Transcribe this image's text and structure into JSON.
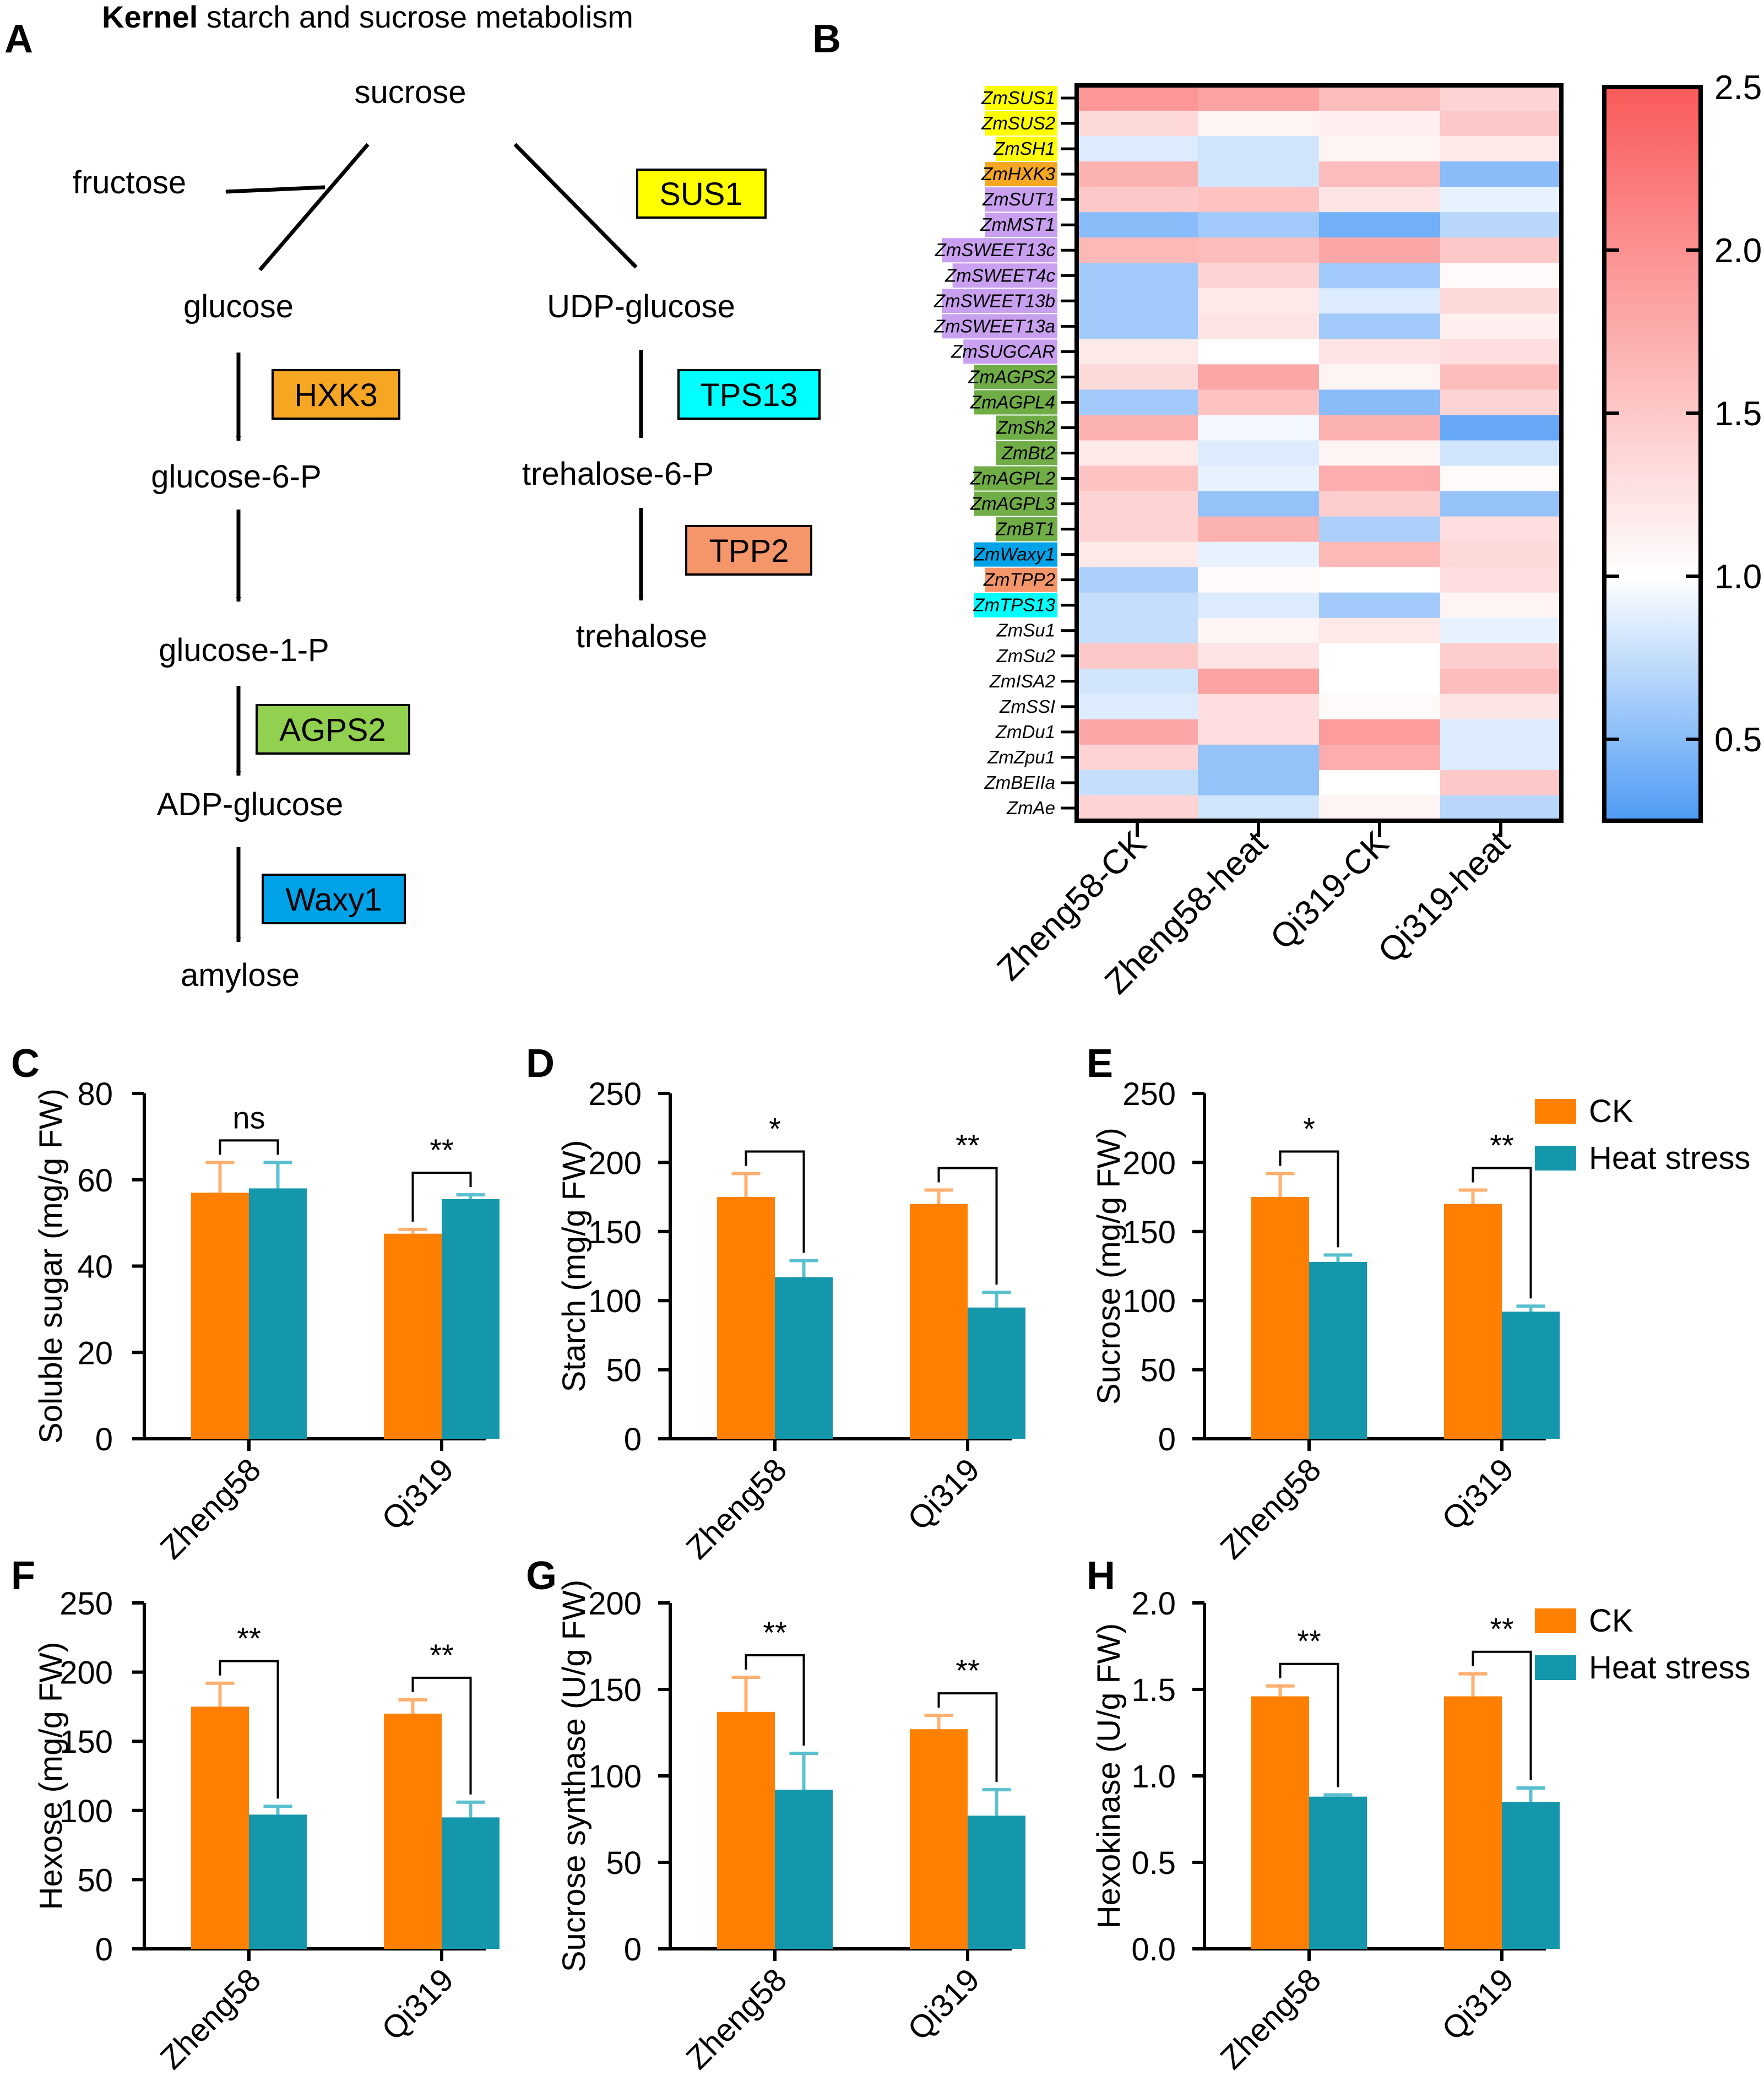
{
  "figure": {
    "panel_A": {
      "label": "A",
      "title_bold": "Kernel",
      "title_rest": " starch and sucrose metabolism",
      "nodes": {
        "sucrose": "sucrose",
        "fructose": "fructose",
        "glucose": "glucose",
        "udp_glucose": "UDP-glucose",
        "glucose6p": "glucose-6-P",
        "glucose1p": "glucose-1-P",
        "adp_glucose": "ADP-glucose",
        "amylose": "amylose",
        "trehalose6p": "trehalose-6-P",
        "trehalose": "trehalose"
      },
      "enzymes": [
        {
          "label": "SUS1",
          "color": "#FFFF00"
        },
        {
          "label": "HXK3",
          "color": "#F5A623"
        },
        {
          "label": "TPS13",
          "color": "#00FFFF"
        },
        {
          "label": "TPP2",
          "color": "#F4956A"
        },
        {
          "label": "AGPS2",
          "color": "#92D050"
        },
        {
          "label": "Waxy1",
          "color": "#00A2E8"
        }
      ]
    }
  },
  "chart_data": [
    {
      "panel": "B",
      "type": "heatmap",
      "columns": [
        "Zheng58-CK",
        "Zheng58-heat",
        "Qi319-CK",
        "Qi319-heat"
      ],
      "rows": [
        {
          "gene": "ZmSUS1",
          "highlight": "#FFFF00",
          "values": [
            1.95,
            1.85,
            1.6,
            1.4
          ]
        },
        {
          "gene": "ZmSUS2",
          "highlight": "#FFFF00",
          "values": [
            1.35,
            1.1,
            1.15,
            1.5
          ]
        },
        {
          "gene": "ZmSH1",
          "highlight": "#FFFF00",
          "values": [
            0.85,
            0.8,
            1.1,
            1.2
          ]
        },
        {
          "gene": "ZmHXK3",
          "highlight": "#F5A623",
          "values": [
            1.7,
            0.8,
            1.6,
            0.5
          ]
        },
        {
          "gene": "ZmSUT1",
          "highlight": "#C9A0F0",
          "values": [
            1.5,
            1.55,
            1.25,
            0.9
          ]
        },
        {
          "gene": "ZmMST1",
          "highlight": "#C9A0F0",
          "values": [
            0.5,
            0.6,
            0.4,
            0.7
          ]
        },
        {
          "gene": "ZmSWEET13c",
          "highlight": "#C9A0F0",
          "values": [
            1.65,
            1.6,
            1.8,
            1.5
          ]
        },
        {
          "gene": "ZmSWEET4c",
          "highlight": "#C9A0F0",
          "values": [
            0.6,
            1.4,
            0.6,
            1.05
          ]
        },
        {
          "gene": "ZmSWEET13b",
          "highlight": "#C9A0F0",
          "values": [
            0.6,
            1.2,
            0.85,
            1.35
          ]
        },
        {
          "gene": "ZmSWEET13a",
          "highlight": "#C9A0F0",
          "values": [
            0.6,
            1.25,
            0.6,
            1.15
          ]
        },
        {
          "gene": "ZmSUGCAR",
          "highlight": "#C9A0F0",
          "values": [
            1.2,
            1.0,
            1.25,
            1.3
          ]
        },
        {
          "gene": "ZmAGPS2",
          "highlight": "#70AD47",
          "values": [
            1.35,
            1.8,
            1.1,
            1.6
          ]
        },
        {
          "gene": "ZmAGPL4",
          "highlight": "#70AD47",
          "values": [
            0.6,
            1.55,
            0.5,
            1.4
          ]
        },
        {
          "gene": "ZmSh2",
          "highlight": "#70AD47",
          "values": [
            1.7,
            0.95,
            1.7,
            0.35
          ]
        },
        {
          "gene": "ZmBt2",
          "highlight": "#70AD47",
          "values": [
            1.2,
            0.85,
            1.1,
            0.8
          ]
        },
        {
          "gene": "ZmAGPL2",
          "highlight": "#70AD47",
          "values": [
            1.55,
            0.9,
            1.75,
            1.05
          ]
        },
        {
          "gene": "ZmAGPL3",
          "highlight": "#70AD47",
          "values": [
            1.4,
            0.55,
            1.45,
            0.55
          ]
        },
        {
          "gene": "ZmBT1",
          "highlight": "#70AD47",
          "values": [
            1.4,
            1.7,
            0.65,
            1.3
          ]
        },
        {
          "gene": "ZmWaxy1",
          "highlight": "#00A2E8",
          "values": [
            1.2,
            0.9,
            1.65,
            1.35
          ]
        },
        {
          "gene": "ZmTPP2",
          "highlight": "#F4956A",
          "values": [
            0.65,
            1.05,
            1.0,
            1.3
          ]
        },
        {
          "gene": "ZmTPS13",
          "highlight": "#00FFFF",
          "values": [
            0.75,
            0.85,
            0.6,
            1.1
          ]
        },
        {
          "gene": "ZmSu1",
          "highlight": "",
          "values": [
            0.75,
            1.1,
            1.2,
            0.9
          ]
        },
        {
          "gene": "ZmSu2",
          "highlight": "",
          "values": [
            1.5,
            1.25,
            1.0,
            1.45
          ]
        },
        {
          "gene": "ZmISA2",
          "highlight": "",
          "values": [
            0.8,
            1.85,
            1.0,
            1.6
          ]
        },
        {
          "gene": "ZmSSI",
          "highlight": "",
          "values": [
            0.85,
            1.3,
            1.05,
            1.25
          ]
        },
        {
          "gene": "ZmDu1",
          "highlight": "",
          "values": [
            1.8,
            1.3,
            1.9,
            0.85
          ]
        },
        {
          "gene": "ZmZpu1",
          "highlight": "",
          "values": [
            1.4,
            0.55,
            1.75,
            0.85
          ]
        },
        {
          "gene": "ZmBEIIa",
          "highlight": "",
          "values": [
            0.75,
            0.55,
            1.0,
            1.5
          ]
        },
        {
          "gene": "ZmAe",
          "highlight": "",
          "values": [
            1.4,
            0.8,
            1.1,
            0.7
          ]
        }
      ],
      "colorbar": {
        "min": 0.25,
        "max": 2.5,
        "ticks": [
          "0.5",
          "1.0",
          "1.5",
          "2.0",
          "2.5"
        ],
        "low_color": "#4E9BF5",
        "mid_color": "#FFFFFF",
        "high_color": "#FA5A5A"
      }
    },
    {
      "panel": "C",
      "type": "bar",
      "ylabel": "Soluble sugar (mg/g FW)",
      "categories": [
        "Zheng58",
        "Qi319"
      ],
      "ylim": [
        0,
        80
      ],
      "yticks": [
        "0",
        "20",
        "40",
        "60",
        "80"
      ],
      "series": [
        {
          "name": "CK",
          "values": [
            57,
            47.5
          ],
          "errors": [
            7,
            1
          ]
        },
        {
          "name": "Heat stress",
          "values": [
            58,
            55.5
          ],
          "errors": [
            6,
            1
          ]
        }
      ],
      "significance": [
        "ns",
        "**"
      ],
      "legend": false
    },
    {
      "panel": "D",
      "type": "bar",
      "ylabel": "Starch (mg/g FW)",
      "categories": [
        "Zheng58",
        "Qi319"
      ],
      "ylim": [
        0,
        250
      ],
      "yticks": [
        "0",
        "50",
        "100",
        "150",
        "200",
        "250"
      ],
      "series": [
        {
          "name": "CK",
          "values": [
            175,
            170
          ],
          "errors": [
            17,
            10
          ]
        },
        {
          "name": "Heat stress",
          "values": [
            117,
            95
          ],
          "errors": [
            12,
            11
          ]
        }
      ],
      "significance": [
        "*",
        "**"
      ],
      "legend": false
    },
    {
      "panel": "E",
      "type": "bar",
      "ylabel": "Sucrose (mg/g FW)",
      "categories": [
        "Zheng58",
        "Qi319"
      ],
      "ylim": [
        0,
        250
      ],
      "yticks": [
        "0",
        "50",
        "100",
        "150",
        "200",
        "250"
      ],
      "series": [
        {
          "name": "CK",
          "values": [
            175,
            170
          ],
          "errors": [
            17,
            10
          ]
        },
        {
          "name": "Heat stress",
          "values": [
            128,
            92
          ],
          "errors": [
            5,
            4
          ]
        }
      ],
      "significance": [
        "*",
        "**"
      ],
      "legend": true
    },
    {
      "panel": "F",
      "type": "bar",
      "ylabel": "Hexose (mg/g FW)",
      "categories": [
        "Zheng58",
        "Qi319"
      ],
      "ylim": [
        0,
        250
      ],
      "yticks": [
        "0",
        "50",
        "100",
        "150",
        "200",
        "250"
      ],
      "series": [
        {
          "name": "CK",
          "values": [
            175,
            170
          ],
          "errors": [
            17,
            10
          ]
        },
        {
          "name": "Heat stress",
          "values": [
            97,
            95
          ],
          "errors": [
            6,
            11
          ]
        }
      ],
      "significance": [
        "**",
        "**"
      ],
      "legend": false
    },
    {
      "panel": "G",
      "type": "bar",
      "ylabel": "Sucrose synthase (U/g FW)",
      "categories": [
        "Zheng58",
        "Qi319"
      ],
      "ylim": [
        0,
        200
      ],
      "yticks": [
        "0",
        "50",
        "100",
        "150",
        "200"
      ],
      "series": [
        {
          "name": "CK",
          "values": [
            137,
            127
          ],
          "errors": [
            20,
            8
          ]
        },
        {
          "name": "Heat stress",
          "values": [
            92,
            77
          ],
          "errors": [
            21,
            15
          ]
        }
      ],
      "significance": [
        "**",
        "**"
      ],
      "legend": false
    },
    {
      "panel": "H",
      "type": "bar",
      "ylabel": "Hexokinase (U/g FW)",
      "categories": [
        "Zheng58",
        "Qi319"
      ],
      "ylim": [
        0,
        2.0
      ],
      "yticks": [
        "0.0",
        "0.5",
        "1.0",
        "1.5",
        "2.0"
      ],
      "series": [
        {
          "name": "CK",
          "values": [
            1.46,
            1.46
          ],
          "errors": [
            0.06,
            0.13
          ]
        },
        {
          "name": "Heat stress",
          "values": [
            0.88,
            0.85
          ],
          "errors": [
            0.01,
            0.08
          ]
        }
      ],
      "significance": [
        "**",
        "**"
      ],
      "legend": true
    }
  ],
  "colors": {
    "ck": "#FF8000",
    "heat": "#1597AB",
    "ck_err": "#FFB070",
    "heat_err": "#5AC0CF"
  }
}
